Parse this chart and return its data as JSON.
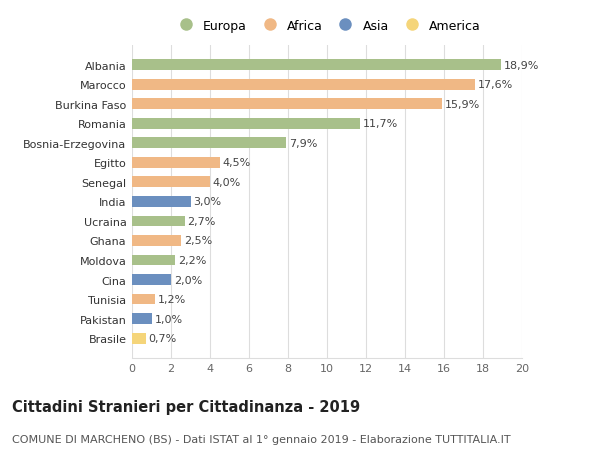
{
  "countries": [
    "Brasile",
    "Pakistan",
    "Tunisia",
    "Cina",
    "Moldova",
    "Ghana",
    "Ucraina",
    "India",
    "Senegal",
    "Egitto",
    "Bosnia-Erzegovina",
    "Romania",
    "Burkina Faso",
    "Marocco",
    "Albania"
  ],
  "values": [
    0.7,
    1.0,
    1.2,
    2.0,
    2.2,
    2.5,
    2.7,
    3.0,
    4.0,
    4.5,
    7.9,
    11.7,
    15.9,
    17.6,
    18.9
  ],
  "labels": [
    "0,7%",
    "1,0%",
    "1,2%",
    "2,0%",
    "2,2%",
    "2,5%",
    "2,7%",
    "3,0%",
    "4,0%",
    "4,5%",
    "7,9%",
    "11,7%",
    "15,9%",
    "17,6%",
    "18,9%"
  ],
  "continents": [
    "America",
    "Asia",
    "Africa",
    "Asia",
    "Europa",
    "Africa",
    "Europa",
    "Asia",
    "Africa",
    "Africa",
    "Europa",
    "Europa",
    "Africa",
    "Africa",
    "Europa"
  ],
  "colors": {
    "Europa": "#a8c08a",
    "Africa": "#f0b885",
    "Asia": "#6b8fbf",
    "America": "#f5d57a"
  },
  "legend_order": [
    "Europa",
    "Africa",
    "Asia",
    "America"
  ],
  "title": "Cittadini Stranieri per Cittadinanza - 2019",
  "subtitle": "COMUNE DI MARCHENO (BS) - Dati ISTAT al 1° gennaio 2019 - Elaborazione TUTTITALIA.IT",
  "xlim": [
    0,
    20
  ],
  "xticks": [
    0,
    2,
    4,
    6,
    8,
    10,
    12,
    14,
    16,
    18,
    20
  ],
  "background_color": "#ffffff",
  "grid_color": "#dddddd",
  "title_fontsize": 10.5,
  "subtitle_fontsize": 8,
  "label_fontsize": 8,
  "tick_fontsize": 8,
  "bar_height": 0.55
}
